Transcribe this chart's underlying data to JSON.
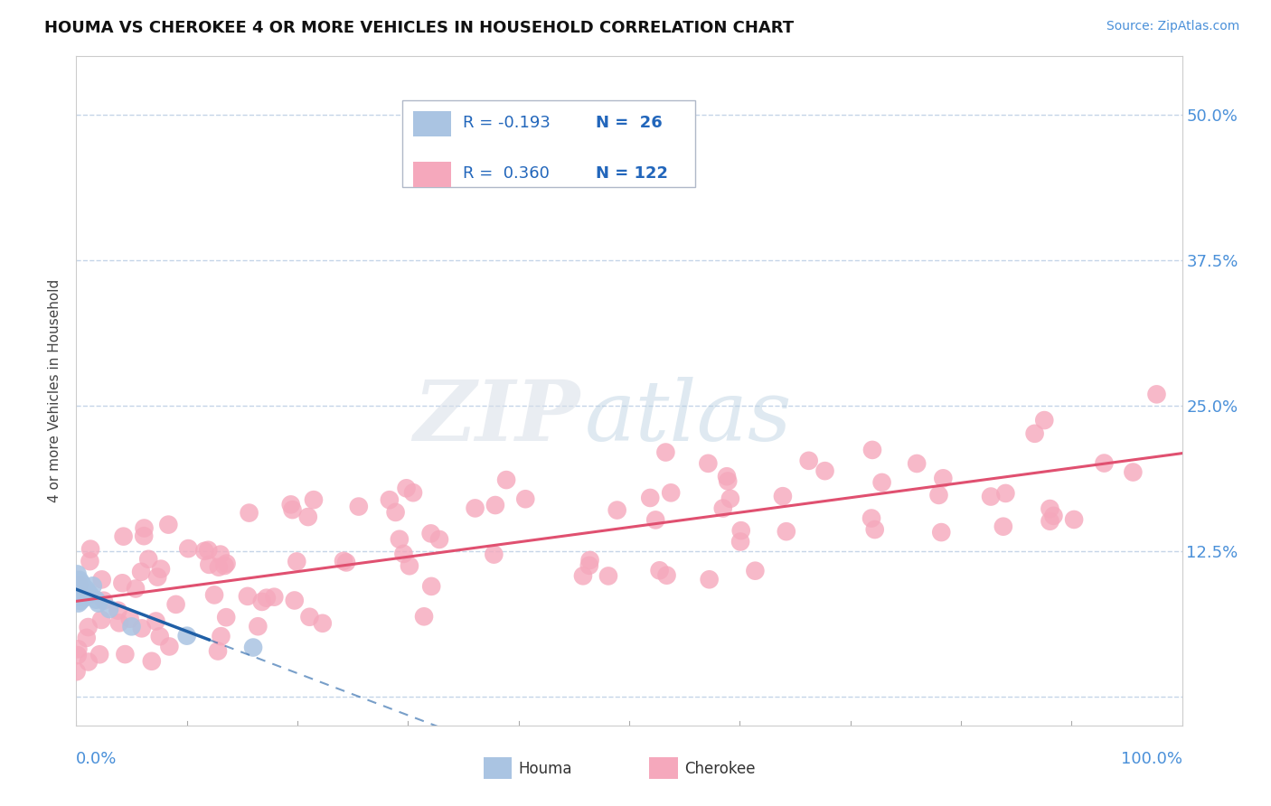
{
  "title": "HOUMA VS CHEROKEE 4 OR MORE VEHICLES IN HOUSEHOLD CORRELATION CHART",
  "source": "Source: ZipAtlas.com",
  "ylabel": "4 or more Vehicles in Household",
  "yticks": [
    0.0,
    0.125,
    0.25,
    0.375,
    0.5
  ],
  "ytick_labels": [
    "",
    "12.5%",
    "25.0%",
    "37.5%",
    "50.0%"
  ],
  "xrange": [
    0.0,
    1.0
  ],
  "yrange": [
    -0.025,
    0.55
  ],
  "houma_R": -0.193,
  "houma_N": 26,
  "cherokee_R": 0.36,
  "cherokee_N": 122,
  "houma_color": "#aac4e2",
  "cherokee_color": "#f5a8bc",
  "houma_line_color": "#1f5fa6",
  "cherokee_line_color": "#e05070",
  "background_color": "#ffffff",
  "grid_color": "#c5d5e8",
  "watermark_zip": "ZIP",
  "watermark_atlas": "atlas",
  "title_fontsize": 13,
  "source_fontsize": 10,
  "legend_fontsize": 13,
  "ylabel_fontsize": 11,
  "tick_label_fontsize": 13
}
